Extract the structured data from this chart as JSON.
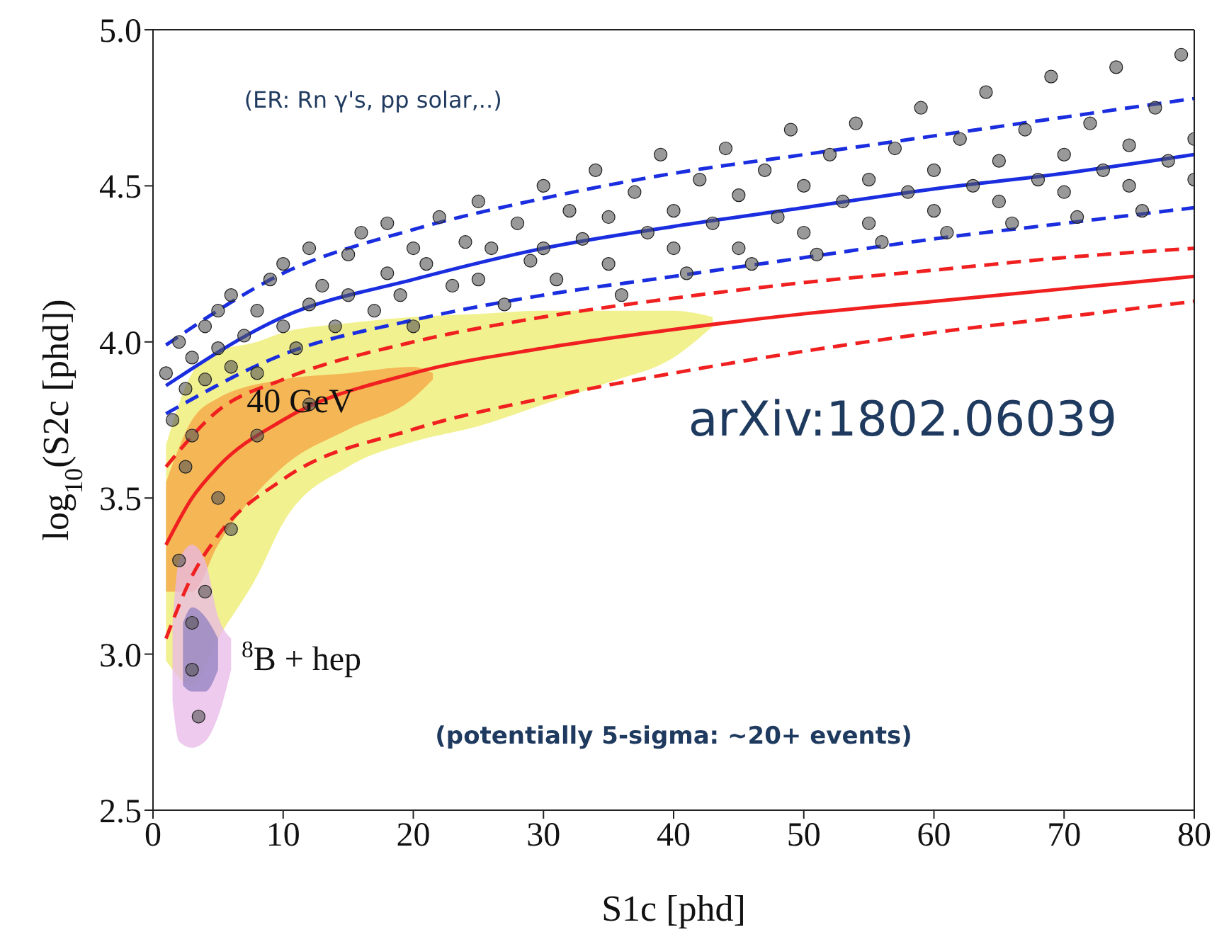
{
  "chart_data": {
    "type": "scatter",
    "xlabel": "S1c [phd]",
    "ylabel": "log$_{10}$(S2c [phd])",
    "xlim": [
      0,
      80
    ],
    "xticks": [
      0,
      10,
      20,
      30,
      40,
      50,
      60,
      70,
      80
    ],
    "ylim": [
      2.5,
      5.0
    ],
    "yticks": [
      {
        "value": 2.5,
        "label": "2.5"
      },
      {
        "value": 3,
        "label": "3.0"
      },
      {
        "value": 3.5,
        "label": "3.5"
      },
      {
        "value": 4,
        "label": "4.0"
      },
      {
        "value": 4.5,
        "label": "4.5"
      },
      {
        "value": 5,
        "label": "5.0"
      }
    ],
    "grid": false,
    "legend": false,
    "series": [
      {
        "type": "area",
        "color": "#eeec6a",
        "x": [
          1,
          3,
          5,
          8,
          10,
          15,
          20,
          25,
          30,
          35,
          40,
          43
        ],
        "values": [
          null,
          null,
          null,
          null,
          null,
          null,
          null,
          null,
          null,
          null,
          null,
          null
        ],
        "lower": [
          2.98,
          2.9,
          3.05,
          3.25,
          3.42,
          3.6,
          3.68,
          3.73,
          3.8,
          3.87,
          3.95,
          4.05
        ],
        "upper": [
          3.67,
          3.9,
          3.97,
          4.0,
          4.03,
          4.06,
          4.08,
          4.09,
          4.1,
          4.1,
          4.1,
          4.08
        ]
      },
      {
        "type": "area",
        "color": "#f5a142",
        "x": [
          1,
          3,
          5,
          10,
          15,
          20,
          21.5
        ],
        "values": [
          null,
          null,
          null,
          null,
          null,
          null,
          null
        ],
        "lower": [
          3.2,
          3.2,
          3.35,
          3.6,
          3.72,
          3.82,
          3.88
        ],
        "upper": [
          3.55,
          3.75,
          3.82,
          3.88,
          3.9,
          3.92,
          3.9
        ]
      },
      {
        "type": "area",
        "color": "#e8b8e8",
        "x": [
          1.5,
          2,
          3,
          4,
          5,
          6
        ],
        "values": [
          null,
          null,
          null,
          null,
          null,
          null
        ],
        "lower": [
          2.85,
          2.72,
          2.7,
          2.72,
          2.8,
          2.95
        ],
        "upper": [
          3.1,
          3.3,
          3.35,
          3.3,
          3.12,
          3.05
        ]
      },
      {
        "type": "area",
        "color": "#9080c0",
        "x": [
          2.3,
          3,
          4,
          5
        ],
        "values": [
          null,
          null,
          null,
          null
        ],
        "lower": [
          2.9,
          2.88,
          2.88,
          2.95
        ],
        "upper": [
          3.1,
          3.15,
          3.12,
          3.05
        ]
      },
      {
        "color": "#555555",
        "marker": "circle",
        "x": [
          1,
          1.5,
          2,
          2.5,
          3,
          3,
          4,
          4,
          5,
          5,
          6,
          6,
          7,
          8,
          8,
          9,
          10,
          10,
          11,
          12,
          12,
          13,
          14,
          15,
          15,
          16,
          17,
          18,
          18,
          19,
          20,
          20,
          21,
          22,
          23,
          24,
          25,
          25,
          26,
          27,
          28,
          29,
          30,
          30,
          31,
          32,
          33,
          34,
          35,
          35,
          36,
          37,
          38,
          39,
          40,
          40,
          41,
          42,
          43,
          44,
          45,
          45,
          46,
          47,
          48,
          49,
          50,
          50,
          51,
          52,
          53,
          54,
          55,
          55,
          56,
          57,
          58,
          59,
          60,
          60,
          61,
          62,
          63,
          64,
          65,
          65,
          66,
          67,
          68,
          69,
          70,
          70,
          71,
          72,
          73,
          74,
          75,
          75,
          76,
          77,
          78,
          79,
          80,
          80,
          2,
          3,
          3,
          4,
          5,
          2.5,
          3.5,
          6,
          8,
          12
        ],
        "values": [
          3.9,
          3.75,
          4.0,
          3.85,
          3.95,
          3.7,
          4.05,
          3.88,
          3.98,
          4.1,
          3.92,
          4.15,
          4.02,
          4.1,
          3.9,
          4.2,
          4.05,
          4.25,
          3.98,
          4.12,
          4.3,
          4.18,
          4.05,
          4.28,
          4.15,
          4.35,
          4.1,
          4.22,
          4.38,
          4.15,
          4.3,
          4.05,
          4.25,
          4.4,
          4.18,
          4.32,
          4.45,
          4.2,
          4.3,
          4.12,
          4.38,
          4.26,
          4.5,
          4.3,
          4.2,
          4.42,
          4.33,
          4.55,
          4.25,
          4.4,
          4.15,
          4.48,
          4.35,
          4.6,
          4.3,
          4.42,
          4.22,
          4.52,
          4.38,
          4.62,
          4.3,
          4.47,
          4.25,
          4.55,
          4.4,
          4.68,
          4.35,
          4.5,
          4.28,
          4.6,
          4.45,
          4.7,
          4.38,
          4.52,
          4.32,
          4.62,
          4.48,
          4.75,
          4.42,
          4.55,
          4.35,
          4.65,
          4.5,
          4.8,
          4.45,
          4.58,
          4.38,
          4.68,
          4.52,
          4.85,
          4.48,
          4.6,
          4.4,
          4.7,
          4.55,
          4.88,
          4.5,
          4.63,
          4.42,
          4.75,
          4.58,
          4.92,
          4.52,
          4.65,
          3.3,
          3.1,
          2.95,
          3.2,
          3.5,
          3.6,
          2.8,
          3.4,
          3.7,
          3.8
        ]
      },
      {
        "type": "line",
        "color": "#1a2ee0",
        "line_style": "dashed",
        "x": [
          1,
          10,
          20,
          30,
          40,
          50,
          60,
          70,
          80
        ],
        "values": [
          3.99,
          4.22,
          4.36,
          4.46,
          4.54,
          4.6,
          4.66,
          4.72,
          4.78
        ]
      },
      {
        "type": "line",
        "color": "#1a2ee0",
        "line_style": "solid",
        "x": [
          1,
          10,
          20,
          30,
          40,
          50,
          60,
          70,
          80
        ],
        "values": [
          3.86,
          4.08,
          4.2,
          4.3,
          4.37,
          4.43,
          4.49,
          4.54,
          4.6
        ]
      },
      {
        "type": "line",
        "color": "#1a2ee0",
        "line_style": "dashed",
        "x": [
          1,
          10,
          20,
          30,
          40,
          50,
          60,
          70,
          80
        ],
        "values": [
          3.77,
          3.96,
          4.07,
          4.15,
          4.21,
          4.27,
          4.33,
          4.38,
          4.43
        ]
      },
      {
        "type": "line",
        "color": "#f02020",
        "line_style": "dashed",
        "x": [
          1,
          5,
          10,
          20,
          30,
          40,
          50,
          60,
          70,
          80
        ],
        "values": [
          3.6,
          3.78,
          3.88,
          4.0,
          4.08,
          4.14,
          4.19,
          4.23,
          4.27,
          4.3
        ]
      },
      {
        "type": "line",
        "color": "#f02020",
        "line_style": "solid",
        "x": [
          1,
          3,
          5,
          10,
          20,
          30,
          40,
          50,
          60,
          70,
          80
        ],
        "values": [
          3.35,
          3.5,
          3.6,
          3.75,
          3.9,
          3.98,
          4.04,
          4.09,
          4.13,
          4.17,
          4.21
        ]
      },
      {
        "type": "line",
        "color": "#f02020",
        "line_style": "dashed",
        "x": [
          1,
          3,
          5,
          10,
          20,
          30,
          40,
          50,
          60,
          70,
          80
        ],
        "values": [
          3.05,
          3.25,
          3.38,
          3.56,
          3.72,
          3.82,
          3.9,
          3.97,
          4.03,
          4.08,
          4.13
        ]
      }
    ],
    "annotations": [
      "(ER: Rn γ's, pp solar,..)",
      "40 GeV",
      "$^{8}$B + hep",
      "arXiv:1802.06039",
      "(potentially 5-sigma: ~20+ events)"
    ]
  }
}
